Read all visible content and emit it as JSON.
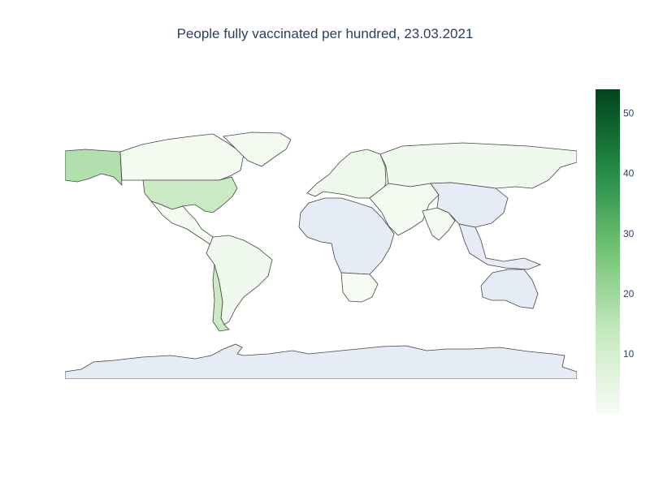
{
  "title": "People fully vaccinated per hundred, 23.03.2021",
  "colorbar": {
    "min": 0,
    "max": 54,
    "ticks": [
      10,
      20,
      30,
      40,
      50
    ],
    "colors": [
      "#f7fcf5",
      "#c7e9c0",
      "#74c476",
      "#238b45",
      "#00441b"
    ]
  },
  "colors": {
    "no_data": "#e5ecf6",
    "border": "#444444"
  },
  "regions": [
    {
      "id": "antarctica",
      "value": null
    },
    {
      "id": "canada",
      "value": 1
    },
    {
      "id": "alaska",
      "value": 17
    },
    {
      "id": "usa",
      "value": 13
    },
    {
      "id": "greenland",
      "value": 1
    },
    {
      "id": "mexico",
      "value": 1
    },
    {
      "id": "south-america",
      "value": 2
    },
    {
      "id": "chile",
      "value": 13
    },
    {
      "id": "europe",
      "value": 3
    },
    {
      "id": "russia",
      "value": 2
    },
    {
      "id": "china",
      "value": null
    },
    {
      "id": "india",
      "value": 1
    },
    {
      "id": "middle-east",
      "value": 1
    },
    {
      "id": "africa",
      "value": null
    },
    {
      "id": "southern-africa",
      "value": 0
    },
    {
      "id": "australia",
      "value": null
    },
    {
      "id": "southeast-asia",
      "value": null
    }
  ]
}
